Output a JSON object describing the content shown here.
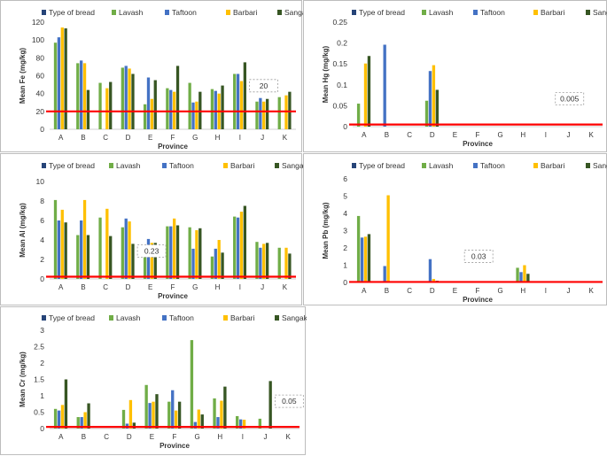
{
  "chart_data": [
    {
      "id": "fe",
      "type": "bar",
      "legend": [
        "Type of bread",
        "Lavash",
        "Taftoon",
        "Barbari",
        "Sangak"
      ],
      "series_colors": [
        "#264478",
        "#70ad47",
        "#4472c4",
        "#ffc000",
        "#375623"
      ],
      "categories": [
        "A",
        "B",
        "C",
        "D",
        "E",
        "F",
        "G",
        "H",
        "I",
        "J",
        "K"
      ],
      "series": [
        {
          "name": "Lavash",
          "values": [
            97,
            74,
            52,
            69,
            28,
            46,
            52,
            45,
            62,
            31,
            36
          ]
        },
        {
          "name": "Taftoon",
          "values": [
            103,
            77,
            0,
            71,
            58,
            44,
            30,
            43,
            62,
            35,
            0
          ]
        },
        {
          "name": "Barbari",
          "values": [
            114,
            74,
            46,
            68,
            34,
            42,
            31,
            40,
            54,
            31,
            38
          ]
        },
        {
          "name": "Sangak",
          "values": [
            113,
            44,
            53,
            62,
            55,
            71,
            42,
            49,
            75,
            34,
            42
          ]
        }
      ],
      "xlabel": "Province",
      "ylabel": "Mean Fe (mg/kg)",
      "ylim": [
        0,
        120
      ],
      "yticks": [
        0,
        20,
        40,
        60,
        80,
        100,
        120
      ],
      "ytick_labels": [
        "0",
        "20",
        "40",
        "60",
        "80",
        "100",
        "120"
      ],
      "threshold": 20,
      "threshold_label": "20",
      "callout_after": "I"
    },
    {
      "id": "hg",
      "type": "bar",
      "legend": [
        "Type of bread",
        "Lavash",
        "Taftoon",
        "Barbari",
        "Sangak"
      ],
      "series_colors": [
        "#264478",
        "#70ad47",
        "#4472c4",
        "#ffc000",
        "#375623"
      ],
      "categories": [
        "A",
        "B",
        "C",
        "D",
        "E",
        "F",
        "G",
        "H",
        "I",
        "J",
        "K"
      ],
      "series": [
        {
          "name": "Lavash",
          "values": [
            0.055,
            0,
            0,
            0.062,
            0,
            0,
            0,
            0,
            0,
            0,
            0
          ]
        },
        {
          "name": "Taftoon",
          "values": [
            0,
            0.196,
            0,
            0.133,
            0,
            0,
            0,
            0,
            0,
            0,
            0
          ]
        },
        {
          "name": "Barbari",
          "values": [
            0.151,
            0,
            0,
            0.147,
            0,
            0,
            0,
            0,
            0,
            0,
            0
          ]
        },
        {
          "name": "Sangak",
          "values": [
            0.169,
            0,
            0,
            0.088,
            0,
            0,
            0,
            0,
            0,
            0,
            0
          ]
        }
      ],
      "xlabel": "Province",
      "ylabel": "Mean Hg (mg/kg)",
      "ylim": [
        0,
        0.25
      ],
      "yticks": [
        0,
        0.05,
        0.1,
        0.15,
        0.2,
        0.25
      ],
      "ytick_labels": [
        "0",
        "0.05",
        "0.1",
        "0.15",
        "0.2",
        "0.25"
      ],
      "threshold": 0.005,
      "threshold_label": "0.005",
      "callout_after": "I"
    },
    {
      "id": "al",
      "type": "bar",
      "legend": [
        "Type of bread",
        "Lavash",
        "Taftoon",
        "Barbari",
        "Sangak"
      ],
      "series_colors": [
        "#264478",
        "#70ad47",
        "#4472c4",
        "#ffc000",
        "#375623"
      ],
      "categories": [
        "A",
        "B",
        "C",
        "D",
        "E",
        "F",
        "G",
        "H",
        "I",
        "J",
        "K"
      ],
      "series": [
        {
          "name": "Lavash",
          "values": [
            8.1,
            4.5,
            6.3,
            5.3,
            3.4,
            5.4,
            5.3,
            2.3,
            6.4,
            3.8,
            3.2
          ]
        },
        {
          "name": "Taftoon",
          "values": [
            6.0,
            6.0,
            0,
            6.2,
            4.1,
            5.4,
            3.1,
            3.1,
            6.3,
            3.2,
            0
          ]
        },
        {
          "name": "Barbari",
          "values": [
            7.1,
            8.1,
            7.2,
            5.9,
            3.7,
            6.2,
            5.0,
            4.0,
            6.9,
            3.6,
            3.2
          ]
        },
        {
          "name": "Sangak",
          "values": [
            5.8,
            4.5,
            4.4,
            3.6,
            3.7,
            5.5,
            5.2,
            2.7,
            7.5,
            3.7,
            2.6
          ]
        }
      ],
      "xlabel": "Province",
      "ylabel": "Mean Al (mg/kg)",
      "ylim": [
        0,
        10
      ],
      "yticks": [
        0,
        2,
        4,
        6,
        8,
        10
      ],
      "ytick_labels": [
        "0",
        "2",
        "4",
        "6",
        "8",
        "10"
      ],
      "threshold": 0.23,
      "threshold_label": "0.23",
      "callout_after": "D"
    },
    {
      "id": "pb",
      "type": "bar",
      "legend": [
        "Type of bread",
        "Lavash",
        "Taftoon",
        "Barbari",
        "Sangak"
      ],
      "series_colors": [
        "#264478",
        "#70ad47",
        "#4472c4",
        "#ffc000",
        "#375623"
      ],
      "categories": [
        "A",
        "B",
        "C",
        "D",
        "E",
        "F",
        "G",
        "H",
        "I",
        "J",
        "K"
      ],
      "series": [
        {
          "name": "Lavash",
          "values": [
            3.85,
            0,
            0,
            0,
            0,
            0,
            0,
            0.85,
            0,
            0,
            0
          ]
        },
        {
          "name": "Taftoon",
          "values": [
            2.6,
            0.95,
            0,
            1.35,
            0,
            0,
            0,
            0.6,
            0,
            0,
            0
          ]
        },
        {
          "name": "Barbari",
          "values": [
            2.65,
            5.05,
            0,
            0.2,
            0,
            0,
            0,
            1.0,
            0.04,
            0.04,
            0.04
          ]
        },
        {
          "name": "Sangak",
          "values": [
            2.8,
            0,
            0,
            0.1,
            0,
            0,
            0,
            0.5,
            0,
            0,
            0
          ]
        }
      ],
      "xlabel": "Province",
      "ylabel": "Mean Pb (mg/kg)",
      "ylim": [
        0,
        6
      ],
      "yticks": [
        0,
        1,
        2,
        3,
        4,
        5,
        6
      ],
      "ytick_labels": [
        "0",
        "1",
        "2",
        "3",
        "4",
        "5",
        "6"
      ],
      "threshold": 0.03,
      "threshold_label": "0.03",
      "callout_after": "E"
    },
    {
      "id": "cr",
      "type": "bar",
      "legend": [
        "Type of bread",
        "Lavash",
        "Taftoon",
        "Barbari",
        "Sangak"
      ],
      "series_colors": [
        "#264478",
        "#70ad47",
        "#4472c4",
        "#ffc000",
        "#375623"
      ],
      "categories": [
        "A",
        "B",
        "C",
        "D",
        "E",
        "F",
        "G",
        "H",
        "I",
        "J",
        "K"
      ],
      "series": [
        {
          "name": "Lavash",
          "values": [
            0.6,
            0.35,
            0,
            0.57,
            1.33,
            0.82,
            2.7,
            0.92,
            0.38,
            0.3,
            0
          ]
        },
        {
          "name": "Taftoon",
          "values": [
            0.55,
            0.35,
            0,
            0.15,
            0.78,
            1.17,
            0.2,
            0.35,
            0.28,
            0,
            0
          ]
        },
        {
          "name": "Barbari",
          "values": [
            0.72,
            0.5,
            0,
            0.87,
            0.82,
            0.55,
            0.58,
            0.85,
            0.27,
            0,
            0
          ]
        },
        {
          "name": "Sangak",
          "values": [
            1.5,
            0.77,
            0,
            0.18,
            1.05,
            0.82,
            0.43,
            1.28,
            0,
            1.45,
            0
          ]
        }
      ],
      "xlabel": "Province",
      "ylabel": "Mean Cr (mg/kg)",
      "ylim": [
        0,
        3
      ],
      "yticks": [
        0,
        0.5,
        1,
        1.5,
        2,
        2.5,
        3
      ],
      "ytick_labels": [
        "0",
        "0.5",
        "1",
        "1.5",
        "2",
        "2.5",
        "3"
      ],
      "threshold": 0.05,
      "threshold_label": "0.05",
      "callout_after": "J"
    }
  ]
}
